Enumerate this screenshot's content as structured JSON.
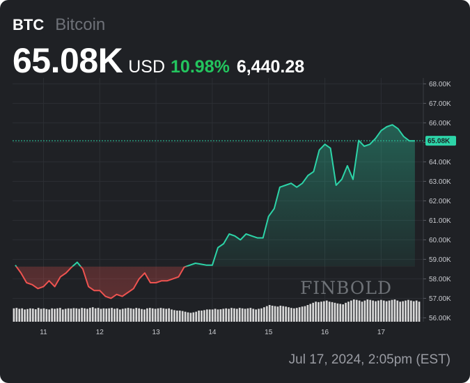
{
  "header": {
    "ticker": "BTC",
    "name": "Bitcoin",
    "price": "65.08K",
    "currency": "USD",
    "change_pct": "10.98%",
    "change_abs": "6,440.28"
  },
  "footer": {
    "timestamp": "Jul 17, 2024, 2:05pm (EST)"
  },
  "watermark": "FINBOLD",
  "colors": {
    "background": "#1f2125",
    "up": "#2dd4a8",
    "down": "#ef5350",
    "positive_text": "#23c55e",
    "volume": "#d9d9d9",
    "price_badge": "#2dd4a8"
  },
  "chart_data": {
    "type": "line",
    "title": "",
    "xlabel": "",
    "ylabel": "",
    "ylim": [
      55800,
      68300
    ],
    "xlim": [
      10.45,
      17.75
    ],
    "x_ticks": [
      11,
      12,
      13,
      14,
      15,
      16,
      17
    ],
    "x_tick_labels": [
      "11",
      "12",
      "13",
      "14",
      "15",
      "16",
      "17"
    ],
    "y_ticks": [
      56000,
      57000,
      58000,
      59000,
      60000,
      61000,
      62000,
      63000,
      64000,
      65000,
      66000,
      67000,
      68000
    ],
    "y_tick_labels": [
      "56.00K",
      "57.00K",
      "58.00K",
      "59.00K",
      "60.00K",
      "61.00K",
      "62.00K",
      "63.00K",
      "64.00K",
      "65.00K",
      "66.00K",
      "67.00K",
      "68.00K"
    ],
    "baseline": 58630,
    "current_price": 65080,
    "current_price_label": "65.08K",
    "grid": true,
    "series": [
      {
        "x": [
          10.5,
          10.6,
          10.7,
          10.8,
          10.9,
          11.0,
          11.1,
          11.2,
          11.3,
          11.4,
          11.5,
          11.6,
          11.7,
          11.8,
          11.9,
          12.0,
          12.1,
          12.2,
          12.3,
          12.4,
          12.5,
          12.6,
          12.7,
          12.8,
          12.9,
          13.0,
          13.1,
          13.2,
          13.3,
          13.4,
          13.5,
          13.6,
          13.7,
          13.8,
          13.9,
          14.0,
          14.1,
          14.2,
          14.3,
          14.4,
          14.5,
          14.6,
          14.7,
          14.8,
          14.9,
          15.0,
          15.1,
          15.2,
          15.3,
          15.4,
          15.5,
          15.6,
          15.7,
          15.8,
          15.9,
          16.0,
          16.1,
          16.2,
          16.3,
          16.4,
          16.5,
          16.6,
          16.7,
          16.8,
          16.9,
          17.0,
          17.1,
          17.2,
          17.3,
          17.4,
          17.5,
          17.6
        ],
        "values": [
          58700,
          58300,
          57800,
          57700,
          57500,
          57600,
          57900,
          57600,
          58100,
          58300,
          58600,
          58850,
          58500,
          57600,
          57400,
          57400,
          57100,
          57000,
          57200,
          57100,
          57300,
          57500,
          58000,
          58300,
          57800,
          57800,
          57900,
          57900,
          58000,
          58100,
          58600,
          58700,
          58800,
          58750,
          58700,
          58700,
          59600,
          59800,
          60300,
          60200,
          60000,
          60300,
          60200,
          60100,
          60100,
          61200,
          61600,
          62700,
          62800,
          62900,
          62700,
          62900,
          63300,
          63500,
          64600,
          64900,
          64700,
          62800,
          63100,
          63800,
          63100,
          65100,
          64800,
          64900,
          65200,
          65600,
          65800,
          65900,
          65700,
          65300,
          65080,
          65080
        ]
      }
    ],
    "volume": [
      0.6,
      0.62,
      0.58,
      0.6,
      0.55,
      0.57,
      0.6,
      0.59,
      0.56,
      0.62,
      0.58,
      0.6,
      0.57,
      0.55,
      0.6,
      0.58,
      0.6,
      0.62,
      0.55,
      0.58,
      0.6,
      0.59,
      0.61,
      0.6,
      0.58,
      0.62,
      0.6,
      0.58,
      0.62,
      0.65,
      0.6,
      0.62,
      0.58,
      0.6,
      0.59,
      0.6,
      0.62,
      0.58,
      0.6,
      0.55,
      0.58,
      0.6,
      0.62,
      0.6,
      0.58,
      0.62,
      0.6,
      0.57,
      0.55,
      0.6,
      0.62,
      0.6,
      0.58,
      0.6,
      0.62,
      0.6,
      0.58,
      0.6,
      0.55,
      0.52,
      0.5,
      0.5,
      0.48,
      0.45,
      0.42,
      0.4,
      0.42,
      0.45,
      0.5,
      0.5,
      0.52,
      0.55,
      0.55,
      0.55,
      0.58,
      0.55,
      0.56,
      0.58,
      0.6,
      0.58,
      0.62,
      0.6,
      0.58,
      0.62,
      0.6,
      0.58,
      0.6,
      0.62,
      0.58,
      0.55,
      0.58,
      0.6,
      0.65,
      0.7,
      0.75,
      0.72,
      0.7,
      0.68,
      0.72,
      0.7,
      0.68,
      0.65,
      0.62,
      0.6,
      0.62,
      0.65,
      0.68,
      0.7,
      0.75,
      0.8,
      0.85,
      0.9,
      0.88,
      0.9,
      0.92,
      0.95,
      0.9,
      0.88,
      0.85,
      0.82,
      0.8,
      0.78,
      0.85,
      0.9,
      0.95,
      1.0,
      0.98,
      0.95,
      0.9,
      0.95,
      1.0,
      0.98,
      0.95,
      0.92,
      0.95,
      0.98,
      0.95,
      0.92,
      0.95,
      0.98,
      1.0,
      0.95,
      0.9,
      0.92,
      0.95,
      0.98,
      0.95,
      0.92,
      0.95,
      0.9
    ]
  }
}
